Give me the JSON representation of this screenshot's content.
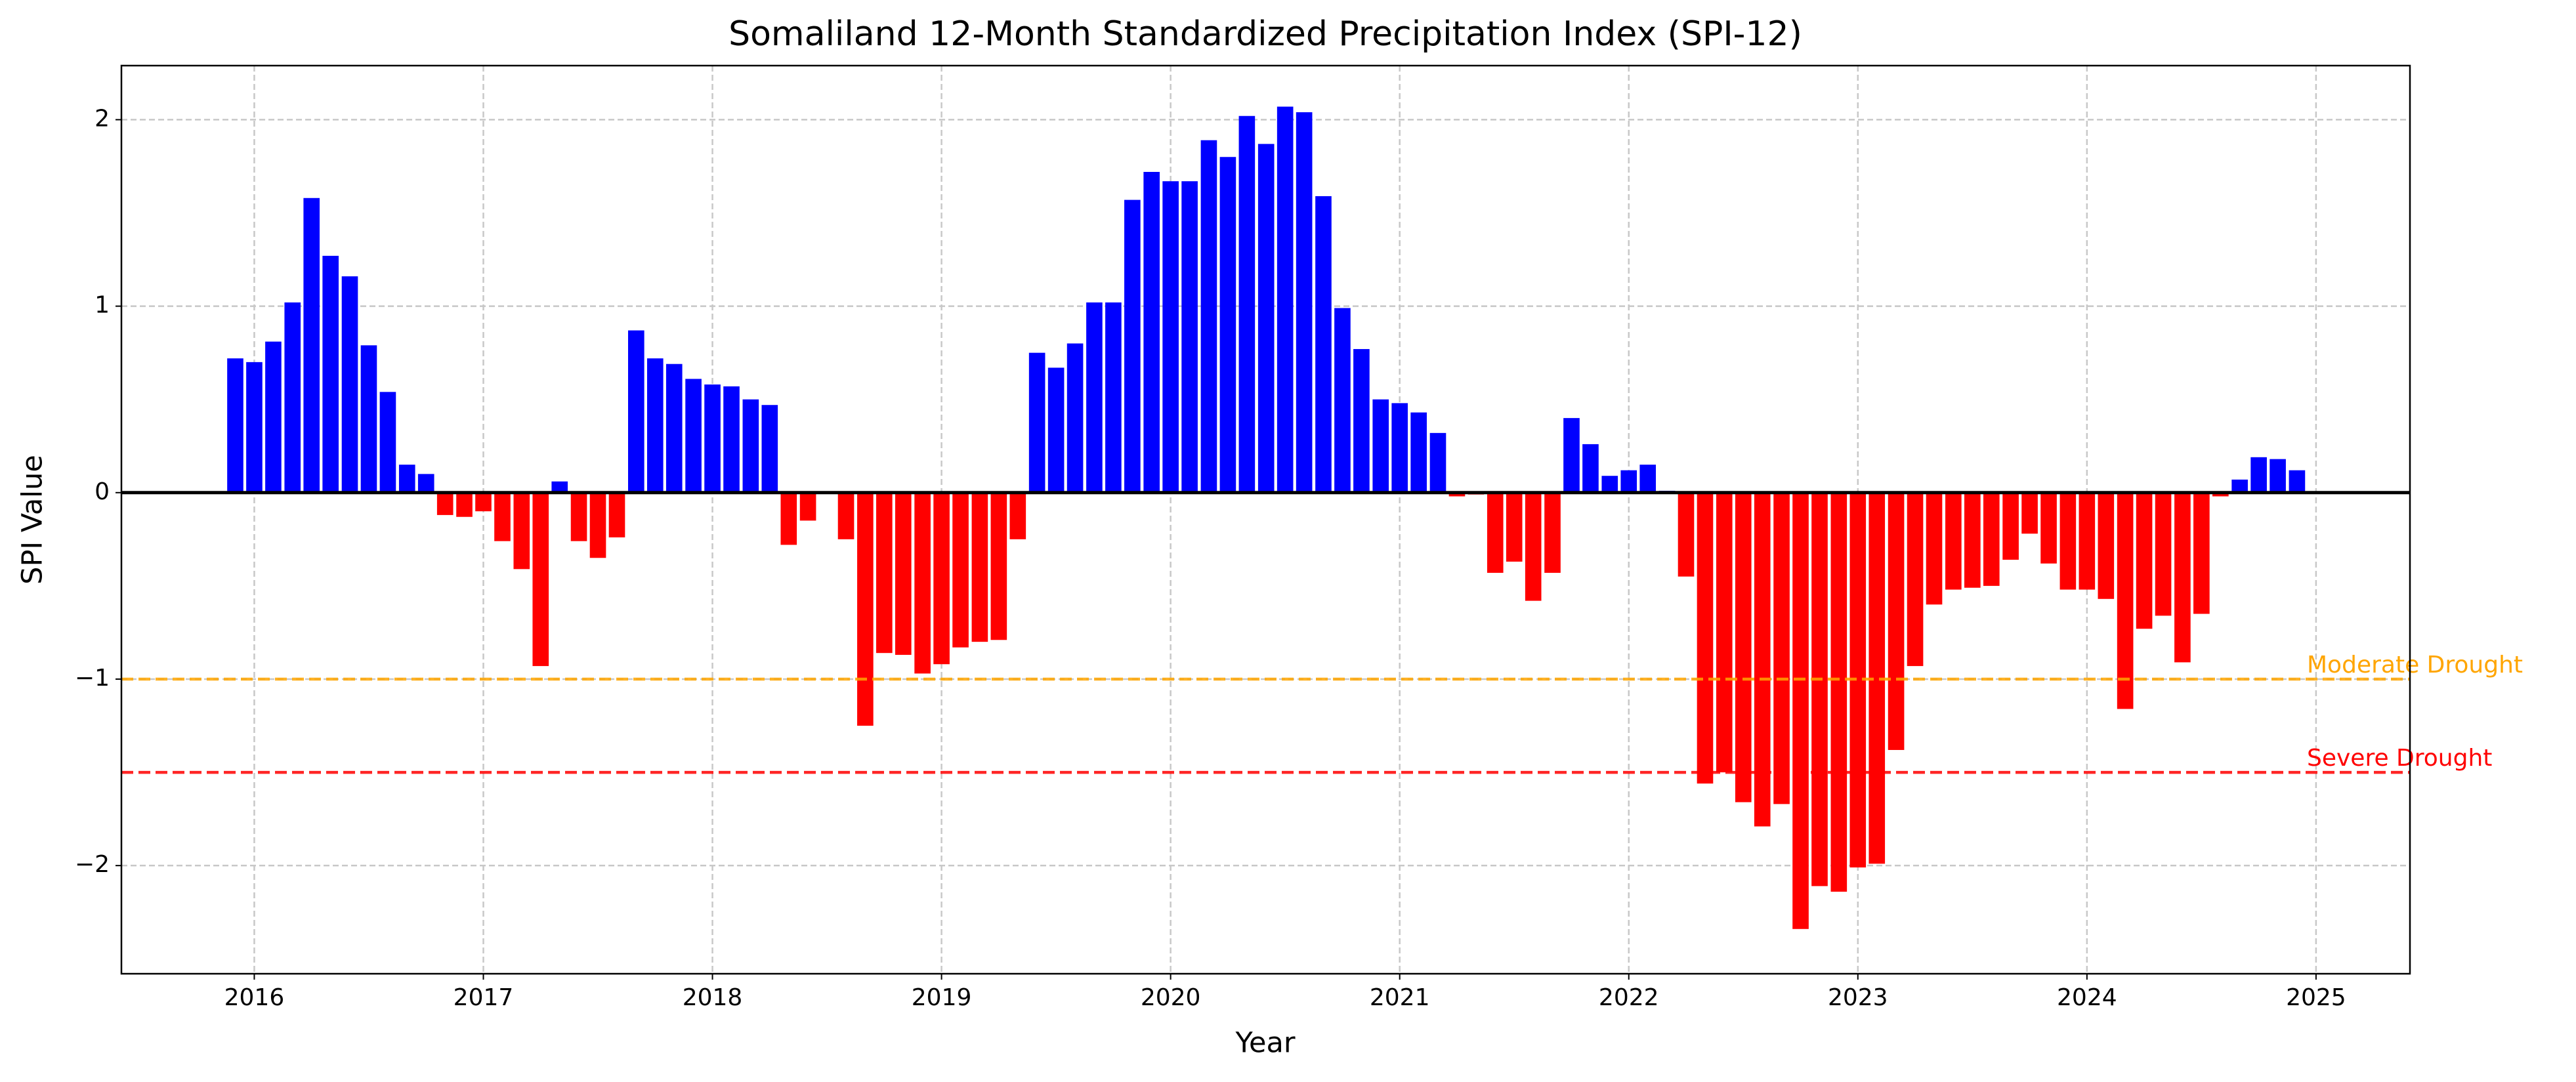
{
  "chart_data": {
    "type": "bar",
    "title": "Somaliland 12-Month Standardized Precipitation Index (SPI-12)",
    "xlabel": "Year",
    "ylabel": "SPI Value",
    "x": [
      2015.917,
      2016,
      2016.083,
      2016.167,
      2016.25,
      2016.333,
      2016.417,
      2016.5,
      2016.583,
      2016.667,
      2016.75,
      2016.833,
      2016.917,
      2017,
      2017.083,
      2017.167,
      2017.25,
      2017.333,
      2017.417,
      2017.5,
      2017.583,
      2017.667,
      2017.75,
      2017.833,
      2017.917,
      2018,
      2018.083,
      2018.167,
      2018.25,
      2018.333,
      2018.417,
      2018.5,
      2018.583,
      2018.667,
      2018.75,
      2018.833,
      2018.917,
      2019,
      2019.083,
      2019.167,
      2019.25,
      2019.333,
      2019.417,
      2019.5,
      2019.583,
      2019.667,
      2019.75,
      2019.833,
      2019.917,
      2020,
      2020.083,
      2020.167,
      2020.25,
      2020.333,
      2020.417,
      2020.5,
      2020.583,
      2020.667,
      2020.75,
      2020.833,
      2020.917,
      2021,
      2021.083,
      2021.167,
      2021.25,
      2021.333,
      2021.417,
      2021.5,
      2021.583,
      2021.667,
      2021.75,
      2021.833,
      2021.917,
      2022,
      2022.083,
      2022.167,
      2022.25,
      2022.333,
      2022.417,
      2022.5,
      2022.583,
      2022.667,
      2022.75,
      2022.833,
      2022.917,
      2023,
      2023.083,
      2023.167,
      2023.25,
      2023.333,
      2023.417,
      2023.5,
      2023.583,
      2023.667,
      2023.75,
      2023.833,
      2023.917,
      2024,
      2024.083,
      2024.167,
      2024.25,
      2024.333,
      2024.417,
      2024.5,
      2024.583,
      2024.667,
      2024.75,
      2024.833,
      2024.917
    ],
    "values": [
      0.72,
      0.7,
      0.81,
      1.02,
      1.58,
      1.27,
      1.16,
      0.79,
      0.54,
      0.15,
      0.1,
      -0.12,
      -0.13,
      -0.1,
      -0.26,
      -0.41,
      -0.93,
      0.06,
      -0.26,
      -0.35,
      -0.24,
      0.87,
      0.72,
      0.69,
      0.61,
      0.58,
      0.57,
      0.5,
      0.47,
      -0.28,
      -0.15,
      0,
      -0.25,
      -1.25,
      -0.86,
      -0.87,
      -0.97,
      -0.92,
      -0.83,
      -0.8,
      -0.79,
      -0.25,
      0.75,
      0.67,
      0.8,
      1.02,
      1.02,
      1.57,
      1.72,
      1.67,
      1.67,
      1.89,
      1.8,
      2.02,
      1.87,
      2.07,
      2.04,
      1.59,
      0.99,
      0.77,
      0.5,
      0.48,
      0.43,
      0.32,
      -0.02,
      -0.01,
      -0.43,
      -0.37,
      -0.58,
      -0.43,
      0.4,
      0.26,
      0.09,
      0.12,
      0.15,
      0.01,
      -0.45,
      -1.56,
      -1.5,
      -1.66,
      -1.79,
      -1.67,
      -2.34,
      -2.11,
      -2.14,
      -2.01,
      -1.99,
      -1.38,
      -0.93,
      -0.6,
      -0.52,
      -0.51,
      -0.5,
      -0.36,
      -0.22,
      -0.38,
      -0.52,
      -0.52,
      -0.57,
      -1.16,
      -0.73,
      -0.66,
      -0.91,
      -0.65,
      -0.02,
      0.07,
      0.19,
      0.18,
      0.12
    ],
    "colors": {
      "positive": "#0000ff",
      "negative": "#ff0000"
    },
    "hlines": [
      {
        "value": -1,
        "label": "Moderate Drought",
        "color": "#ffa500"
      },
      {
        "value": -1.5,
        "label": "Severe Drought",
        "color": "#ff0000"
      }
    ],
    "xlim": [
      2015.42,
      2025.41
    ],
    "ylim": [
      -2.58,
      2.29
    ],
    "xticks": [
      2016,
      2017,
      2018,
      2019,
      2020,
      2021,
      2022,
      2023,
      2024,
      2025
    ],
    "yticks": [
      {
        "value": -2,
        "label": "−2"
      },
      {
        "value": -1,
        "label": "−1"
      },
      0,
      1,
      2
    ],
    "grid": true
  }
}
